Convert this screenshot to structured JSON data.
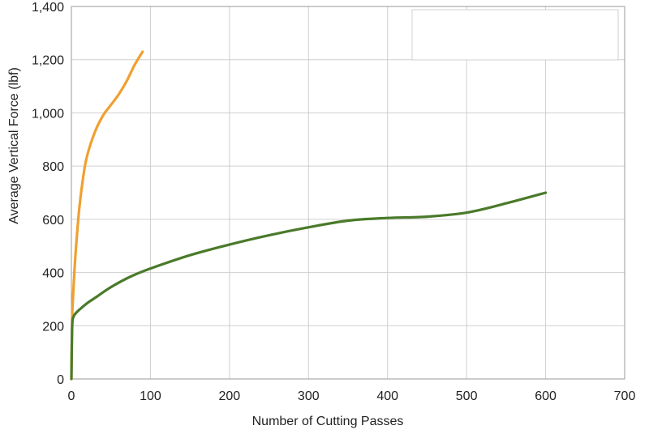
{
  "chart_data": {
    "type": "line",
    "title": "",
    "xlabel": "Number of Cutting Passes",
    "ylabel": "Average Vertical Force (lbf)",
    "xlim": [
      0,
      700
    ],
    "ylim": [
      0,
      1400
    ],
    "x_ticks": [
      0,
      100,
      200,
      300,
      400,
      500,
      600,
      700
    ],
    "y_ticks": [
      0,
      200,
      400,
      600,
      800,
      1000,
      1200,
      1400
    ],
    "x_tick_labels": [
      "0",
      "100",
      "200",
      "300",
      "400",
      "500",
      "600",
      "700"
    ],
    "y_tick_labels": [
      "0",
      "200",
      "400",
      "600",
      "800",
      "1,000",
      "1,200",
      "1,400"
    ],
    "grid": true,
    "legend": {
      "placement": "top-right",
      "entries": []
    },
    "series": [
      {
        "color": "#f0a030",
        "x": [
          0,
          1,
          2,
          5,
          10,
          15,
          20,
          30,
          40,
          50,
          60,
          70,
          80,
          90
        ],
        "y": [
          0,
          230,
          300,
          460,
          640,
          760,
          840,
          930,
          990,
          1030,
          1070,
          1120,
          1180,
          1230
        ]
      },
      {
        "color": "#4a7a2a",
        "x": [
          0,
          1,
          3,
          5,
          10,
          20,
          30,
          50,
          75,
          100,
          150,
          200,
          250,
          300,
          350,
          400,
          450,
          500,
          550,
          600
        ],
        "y": [
          0,
          200,
          235,
          245,
          260,
          285,
          305,
          345,
          385,
          415,
          465,
          505,
          540,
          570,
          595,
          605,
          610,
          625,
          660,
          700
        ]
      }
    ]
  }
}
